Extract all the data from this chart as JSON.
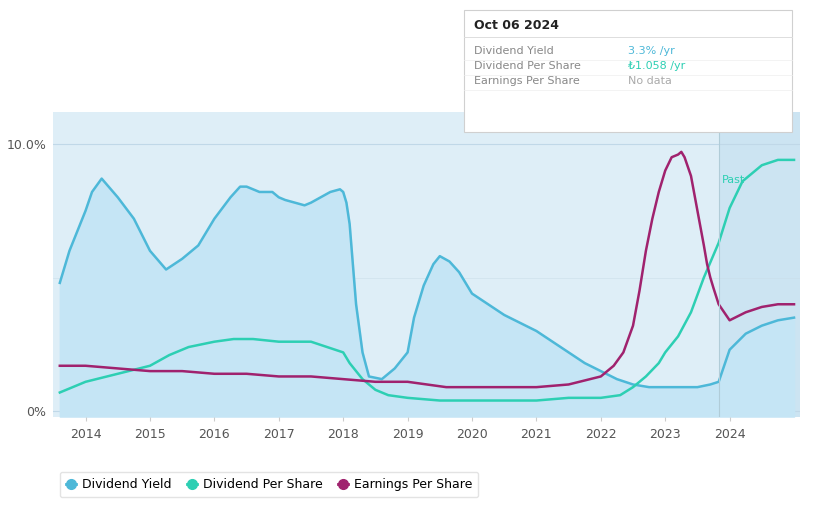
{
  "bg_color": "#ffffff",
  "plot_bg_color": "#deeef7",
  "past_bg_color": "#cce4f2",
  "x_min": 2013.5,
  "x_max": 2025.1,
  "y_min": -0.002,
  "y_max": 0.112,
  "ytick_vals": [
    0.0,
    0.1
  ],
  "ytick_labels": [
    "0%",
    "10.0%"
  ],
  "xtick_years": [
    2014,
    2015,
    2016,
    2017,
    2018,
    2019,
    2020,
    2021,
    2022,
    2023,
    2024
  ],
  "past_line_x": 2023.83,
  "past_label": "Past",
  "dividend_yield": {
    "label": "Dividend Yield",
    "color": "#4db8d8",
    "fill_color": "#c5e5f5",
    "x": [
      2013.6,
      2013.75,
      2014.0,
      2014.1,
      2014.25,
      2014.5,
      2014.75,
      2015.0,
      2015.25,
      2015.5,
      2015.75,
      2016.0,
      2016.25,
      2016.4,
      2016.5,
      2016.7,
      2016.9,
      2017.0,
      2017.1,
      2017.25,
      2017.4,
      2017.5,
      2017.65,
      2017.8,
      2017.95,
      2018.0,
      2018.05,
      2018.1,
      2018.15,
      2018.2,
      2018.3,
      2018.4,
      2018.6,
      2018.8,
      2019.0,
      2019.1,
      2019.25,
      2019.4,
      2019.5,
      2019.65,
      2019.8,
      2020.0,
      2020.25,
      2020.5,
      2020.75,
      2021.0,
      2021.25,
      2021.5,
      2021.75,
      2022.0,
      2022.25,
      2022.5,
      2022.75,
      2023.0,
      2023.25,
      2023.5,
      2023.7,
      2023.83,
      2024.0,
      2024.25,
      2024.5,
      2024.75,
      2025.0
    ],
    "y": [
      0.048,
      0.06,
      0.075,
      0.082,
      0.087,
      0.08,
      0.072,
      0.06,
      0.053,
      0.057,
      0.062,
      0.072,
      0.08,
      0.084,
      0.084,
      0.082,
      0.082,
      0.08,
      0.079,
      0.078,
      0.077,
      0.078,
      0.08,
      0.082,
      0.083,
      0.082,
      0.078,
      0.07,
      0.055,
      0.04,
      0.022,
      0.013,
      0.012,
      0.016,
      0.022,
      0.035,
      0.047,
      0.055,
      0.058,
      0.056,
      0.052,
      0.044,
      0.04,
      0.036,
      0.033,
      0.03,
      0.026,
      0.022,
      0.018,
      0.015,
      0.012,
      0.01,
      0.009,
      0.009,
      0.009,
      0.009,
      0.01,
      0.011,
      0.023,
      0.029,
      0.032,
      0.034,
      0.035
    ]
  },
  "dividend_per_share": {
    "label": "Dividend Per Share",
    "color": "#2dcfb3",
    "x": [
      2013.6,
      2013.8,
      2014.0,
      2014.5,
      2015.0,
      2015.3,
      2015.6,
      2016.0,
      2016.3,
      2016.6,
      2017.0,
      2017.5,
      2018.0,
      2018.1,
      2018.3,
      2018.5,
      2018.7,
      2019.0,
      2019.5,
      2020.0,
      2020.5,
      2021.0,
      2021.5,
      2022.0,
      2022.3,
      2022.5,
      2022.7,
      2022.9,
      2023.0,
      2023.2,
      2023.4,
      2023.6,
      2023.83,
      2024.0,
      2024.2,
      2024.5,
      2024.75,
      2025.0
    ],
    "y": [
      0.007,
      0.009,
      0.011,
      0.014,
      0.017,
      0.021,
      0.024,
      0.026,
      0.027,
      0.027,
      0.026,
      0.026,
      0.022,
      0.018,
      0.012,
      0.008,
      0.006,
      0.005,
      0.004,
      0.004,
      0.004,
      0.004,
      0.005,
      0.005,
      0.006,
      0.009,
      0.013,
      0.018,
      0.022,
      0.028,
      0.037,
      0.05,
      0.063,
      0.076,
      0.086,
      0.092,
      0.094,
      0.094
    ]
  },
  "earnings_per_share": {
    "label": "Earnings Per Share",
    "color": "#a0226e",
    "x": [
      2013.6,
      2014.0,
      2014.5,
      2015.0,
      2015.5,
      2016.0,
      2016.5,
      2017.0,
      2017.5,
      2018.0,
      2018.5,
      2019.0,
      2019.3,
      2019.6,
      2020.0,
      2020.5,
      2021.0,
      2021.5,
      2022.0,
      2022.2,
      2022.35,
      2022.5,
      2022.6,
      2022.7,
      2022.8,
      2022.9,
      2023.0,
      2023.1,
      2023.2,
      2023.25,
      2023.3,
      2023.4,
      2023.5,
      2023.6,
      2023.65,
      2023.7,
      2023.75,
      2023.83,
      2024.0,
      2024.25,
      2024.5,
      2024.75,
      2025.0
    ],
    "y": [
      0.017,
      0.017,
      0.016,
      0.015,
      0.015,
      0.014,
      0.014,
      0.013,
      0.013,
      0.012,
      0.011,
      0.011,
      0.01,
      0.009,
      0.009,
      0.009,
      0.009,
      0.01,
      0.013,
      0.017,
      0.022,
      0.032,
      0.045,
      0.06,
      0.072,
      0.082,
      0.09,
      0.095,
      0.096,
      0.097,
      0.095,
      0.088,
      0.075,
      0.062,
      0.055,
      0.05,
      0.046,
      0.04,
      0.034,
      0.037,
      0.039,
      0.04,
      0.04
    ]
  },
  "tooltip": {
    "date": "Oct 06 2024",
    "rows": [
      {
        "label": "Dividend Yield",
        "value": "3.3%",
        "unit": " /yr",
        "color": "#4db8d8"
      },
      {
        "label": "Dividend Per Share",
        "value": "₺1.058",
        "unit": " /yr",
        "color": "#2dcfb3"
      },
      {
        "label": "Earnings Per Share",
        "value": "No data",
        "unit": "",
        "color": "#aaaaaa"
      }
    ]
  },
  "legend": [
    {
      "label": "Dividend Yield",
      "color": "#4db8d8"
    },
    {
      "label": "Dividend Per Share",
      "color": "#2dcfb3"
    },
    {
      "label": "Earnings Per Share",
      "color": "#a0226e"
    }
  ]
}
